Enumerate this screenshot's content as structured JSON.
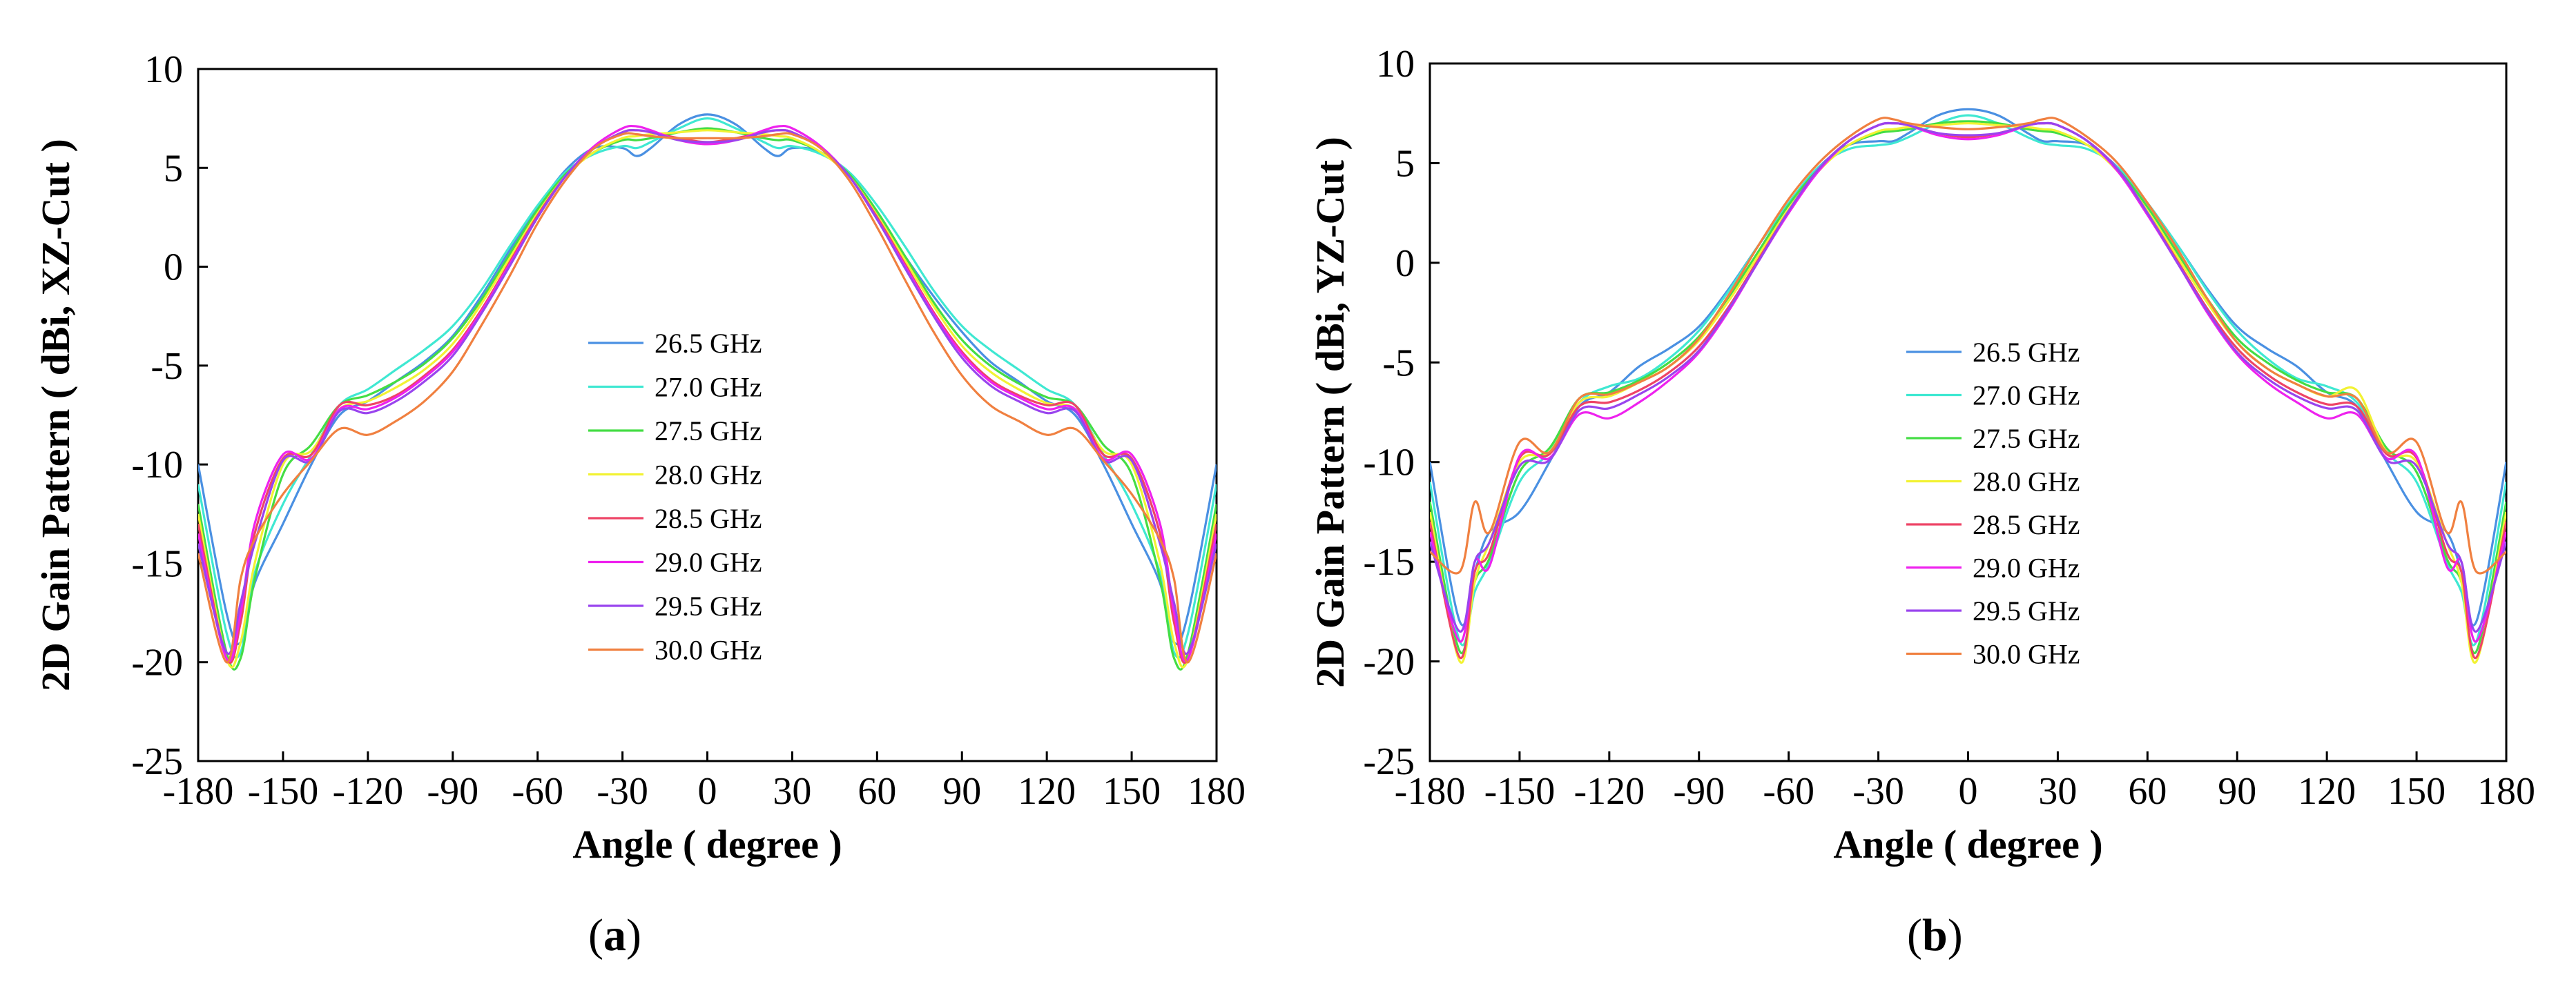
{
  "chart_data": [
    {
      "type": "line",
      "panel": "a",
      "caption": "a",
      "title": "",
      "xlabel": "Angle ( degree )",
      "ylabel": "2D Gain Pattern ( dBi, XZ-Cut )",
      "xlim": [
        -180,
        180
      ],
      "ylim": [
        -25,
        10
      ],
      "xticks": [
        "-180",
        "-150",
        "-120",
        "-90",
        "-60",
        "-30",
        "0",
        "30",
        "60",
        "90",
        "120",
        "150",
        "180"
      ],
      "yticks": [
        "10",
        "5",
        "0",
        "-5",
        "-10",
        "-15",
        "-20",
        "-25"
      ],
      "grid": false,
      "legend_position": "center",
      "x": [
        -180,
        -170,
        -165,
        -160,
        -150,
        -140,
        -130,
        -120,
        -110,
        -100,
        -90,
        -80,
        -70,
        -60,
        -50,
        -40,
        -30,
        -25,
        -20,
        -10,
        0,
        10,
        20,
        25,
        30,
        40,
        50,
        60,
        70,
        80,
        90,
        100,
        110,
        120,
        130,
        140,
        150,
        160,
        165,
        170,
        180
      ],
      "series": [
        {
          "name": "26.5 GHz",
          "color": "#4a90e2",
          "values": [
            -10.0,
            -17.5,
            -19.0,
            -16.0,
            -13.0,
            -10.0,
            -7.5,
            -6.8,
            -5.8,
            -4.8,
            -3.5,
            -1.5,
            0.8,
            3.0,
            4.9,
            6.0,
            6.0,
            5.6,
            6.0,
            7.2,
            7.7,
            7.2,
            6.0,
            5.6,
            6.0,
            5.8,
            4.6,
            2.7,
            0.5,
            -1.5,
            -3.3,
            -4.8,
            -5.8,
            -6.8,
            -7.5,
            -10.0,
            -13.0,
            -16.0,
            -19.0,
            -17.5,
            -10.0
          ]
        },
        {
          "name": "27.0 GHz",
          "color": "#3fe8d2",
          "values": [
            -11.0,
            -18.5,
            -19.5,
            -15.5,
            -12.0,
            -9.5,
            -7.0,
            -6.2,
            -5.2,
            -4.2,
            -3.0,
            -1.2,
            1.0,
            3.1,
            4.8,
            5.7,
            6.1,
            6.0,
            6.3,
            7.0,
            7.5,
            7.0,
            6.3,
            6.0,
            6.1,
            5.7,
            4.8,
            3.1,
            1.0,
            -1.2,
            -3.0,
            -4.2,
            -5.2,
            -6.2,
            -7.0,
            -9.5,
            -12.0,
            -15.5,
            -19.5,
            -18.5,
            -11.0
          ]
        },
        {
          "name": "27.5 GHz",
          "color": "#44dd44",
          "values": [
            -12.0,
            -19.5,
            -19.8,
            -15.8,
            -10.5,
            -9.0,
            -7.0,
            -6.5,
            -5.8,
            -4.9,
            -3.6,
            -1.7,
            0.6,
            2.9,
            4.7,
            5.8,
            6.4,
            6.4,
            6.5,
            6.8,
            7.0,
            6.8,
            6.5,
            6.4,
            6.4,
            5.8,
            4.7,
            2.8,
            0.5,
            -1.8,
            -3.7,
            -5.0,
            -5.9,
            -6.6,
            -7.0,
            -9.0,
            -10.5,
            -15.8,
            -19.8,
            -19.5,
            -12.0
          ]
        },
        {
          "name": "28.0 GHz",
          "color": "#f2f233",
          "values": [
            -12.5,
            -19.8,
            -19.0,
            -15.0,
            -10.0,
            -9.3,
            -7.2,
            -6.8,
            -6.1,
            -5.2,
            -3.9,
            -1.9,
            0.4,
            2.7,
            4.6,
            5.8,
            6.5,
            6.6,
            6.7,
            6.8,
            6.9,
            6.8,
            6.7,
            6.6,
            6.5,
            5.8,
            4.6,
            2.6,
            0.3,
            -2.0,
            -4.0,
            -5.3,
            -6.2,
            -6.9,
            -7.2,
            -9.3,
            -10.0,
            -15.0,
            -19.0,
            -19.8,
            -12.5
          ]
        },
        {
          "name": "28.5 GHz",
          "color": "#ee4466",
          "values": [
            -13.0,
            -19.8,
            -18.0,
            -13.5,
            -9.7,
            -9.5,
            -7.0,
            -7.0,
            -6.5,
            -5.5,
            -4.2,
            -2.2,
            0.2,
            2.6,
            4.6,
            6.0,
            6.8,
            6.9,
            6.8,
            6.5,
            6.3,
            6.5,
            6.8,
            6.9,
            6.8,
            6.0,
            4.6,
            2.5,
            0.1,
            -2.3,
            -4.3,
            -5.7,
            -6.5,
            -7.0,
            -7.0,
            -9.5,
            -9.7,
            -13.5,
            -18.0,
            -19.8,
            -13.0
          ]
        },
        {
          "name": "29.0 GHz",
          "color": "#ee22ee",
          "values": [
            -13.5,
            -19.8,
            -17.5,
            -13.0,
            -9.5,
            -9.7,
            -7.2,
            -7.2,
            -6.6,
            -5.6,
            -4.3,
            -2.3,
            0.1,
            2.5,
            4.6,
            6.1,
            7.0,
            7.1,
            6.9,
            6.4,
            6.2,
            6.4,
            6.9,
            7.1,
            7.0,
            6.1,
            4.6,
            2.4,
            0.0,
            -2.4,
            -4.4,
            -5.8,
            -6.6,
            -7.2,
            -7.2,
            -9.7,
            -9.5,
            -13.0,
            -17.5,
            -19.8,
            -13.5
          ]
        },
        {
          "name": "29.5 GHz",
          "color": "#9944ee",
          "values": [
            -14.0,
            -19.5,
            -17.0,
            -14.0,
            -9.8,
            -9.8,
            -7.3,
            -7.4,
            -6.8,
            -5.8,
            -4.5,
            -2.4,
            0.0,
            2.5,
            4.6,
            6.0,
            6.8,
            6.9,
            6.8,
            6.4,
            6.3,
            6.4,
            6.8,
            6.9,
            6.8,
            6.0,
            4.6,
            2.4,
            -0.1,
            -2.5,
            -4.6,
            -6.0,
            -6.8,
            -7.4,
            -7.3,
            -9.8,
            -9.8,
            -14.0,
            -17.0,
            -19.5,
            -14.0
          ]
        },
        {
          "name": "30.0 GHz",
          "color": "#f08040",
          "values": [
            -14.5,
            -20.0,
            -15.8,
            -13.8,
            -11.5,
            -9.8,
            -8.2,
            -8.5,
            -7.8,
            -6.8,
            -5.3,
            -3.0,
            -0.5,
            2.2,
            4.4,
            6.0,
            6.7,
            6.7,
            6.6,
            6.5,
            6.5,
            6.5,
            6.6,
            6.7,
            6.7,
            6.0,
            4.4,
            2.0,
            -0.7,
            -3.3,
            -5.5,
            -7.0,
            -7.8,
            -8.5,
            -8.2,
            -9.8,
            -11.5,
            -13.8,
            -15.8,
            -20.0,
            -14.5
          ]
        }
      ]
    },
    {
      "type": "line",
      "panel": "b",
      "caption": "b",
      "title": "",
      "xlabel": "Angle ( degree )",
      "ylabel": "2D Gain Pattern ( dBi, YZ-Cut )",
      "xlim": [
        -180,
        180
      ],
      "ylim": [
        -25,
        10
      ],
      "xticks": [
        "-180",
        "-150",
        "-120",
        "-90",
        "-60",
        "-30",
        "0",
        "30",
        "60",
        "90",
        "120",
        "150",
        "180"
      ],
      "yticks": [
        "10",
        "5",
        "0",
        "-5",
        "-10",
        "-15",
        "-20",
        "-25"
      ],
      "grid": false,
      "legend_position": "center",
      "x": [
        -180,
        -170,
        -165,
        -160,
        -150,
        -140,
        -130,
        -120,
        -110,
        -100,
        -90,
        -80,
        -70,
        -60,
        -50,
        -40,
        -30,
        -25,
        -20,
        -10,
        0,
        10,
        20,
        25,
        30,
        40,
        50,
        60,
        70,
        80,
        90,
        100,
        110,
        120,
        130,
        140,
        150,
        160,
        165,
        170,
        180
      ],
      "series": [
        {
          "name": "26.5 GHz",
          "color": "#4a90e2",
          "values": [
            -10.0,
            -18.0,
            -15.5,
            -13.5,
            -12.5,
            -10.0,
            -7.2,
            -6.5,
            -5.2,
            -4.3,
            -3.2,
            -1.3,
            0.9,
            3.0,
            4.8,
            5.9,
            6.1,
            6.1,
            6.5,
            7.4,
            7.7,
            7.4,
            6.5,
            6.1,
            6.1,
            5.9,
            4.8,
            3.0,
            0.9,
            -1.3,
            -3.2,
            -4.3,
            -5.2,
            -6.5,
            -7.2,
            -10.0,
            -12.5,
            -13.5,
            -15.5,
            -18.0,
            -10.0
          ]
        },
        {
          "name": "27.0 GHz",
          "color": "#3fe8d2",
          "values": [
            -11.0,
            -19.0,
            -16.5,
            -15.0,
            -11.0,
            -9.5,
            -7.0,
            -6.2,
            -5.8,
            -4.8,
            -3.4,
            -1.4,
            0.9,
            3.0,
            4.8,
            5.7,
            5.9,
            6.0,
            6.3,
            7.0,
            7.4,
            7.0,
            6.3,
            6.0,
            5.9,
            5.7,
            4.8,
            3.0,
            0.9,
            -1.4,
            -3.4,
            -4.8,
            -5.8,
            -6.2,
            -7.0,
            -9.5,
            -11.0,
            -15.0,
            -16.5,
            -19.0,
            -11.0
          ]
        },
        {
          "name": "27.5 GHz",
          "color": "#44dd44",
          "values": [
            -12.0,
            -19.5,
            -16.0,
            -14.8,
            -10.5,
            -9.3,
            -6.8,
            -6.5,
            -5.9,
            -5.0,
            -3.7,
            -1.7,
            0.6,
            2.9,
            4.7,
            5.9,
            6.5,
            6.6,
            6.7,
            7.0,
            7.1,
            7.0,
            6.7,
            6.6,
            6.5,
            5.9,
            4.7,
            2.8,
            0.5,
            -1.8,
            -3.8,
            -5.0,
            -5.9,
            -6.5,
            -6.8,
            -9.3,
            -10.5,
            -14.8,
            -16.0,
            -19.5,
            -12.0
          ]
        },
        {
          "name": "28.0 GHz",
          "color": "#f2f233",
          "values": [
            -12.5,
            -20.0,
            -16.0,
            -14.0,
            -10.0,
            -9.5,
            -7.0,
            -6.7,
            -6.0,
            -5.2,
            -3.9,
            -1.9,
            0.4,
            2.7,
            4.6,
            5.9,
            6.6,
            6.7,
            6.8,
            6.9,
            7.0,
            6.9,
            6.8,
            6.7,
            6.6,
            5.9,
            4.6,
            2.6,
            0.3,
            -2.0,
            -4.0,
            -5.3,
            -6.1,
            -6.7,
            -6.4,
            -9.5,
            -10.0,
            -14.0,
            -16.0,
            -20.0,
            -12.5
          ]
        },
        {
          "name": "28.5 GHz",
          "color": "#ee4466",
          "values": [
            -13.0,
            -19.8,
            -15.5,
            -14.5,
            -9.8,
            -9.6,
            -7.2,
            -7.0,
            -6.4,
            -5.5,
            -4.2,
            -2.2,
            0.2,
            2.6,
            4.7,
            6.1,
            6.9,
            7.0,
            6.9,
            6.5,
            6.3,
            6.5,
            6.9,
            7.0,
            6.9,
            6.1,
            4.7,
            2.5,
            0.1,
            -2.3,
            -4.3,
            -5.6,
            -6.5,
            -7.1,
            -7.2,
            -9.6,
            -9.8,
            -14.5,
            -15.5,
            -19.8,
            -13.0
          ]
        },
        {
          "name": "29.0 GHz",
          "color": "#ee22ee",
          "values": [
            -13.5,
            -19.0,
            -15.0,
            -15.2,
            -9.7,
            -9.8,
            -7.6,
            -7.8,
            -7.0,
            -5.9,
            -4.5,
            -2.4,
            0.1,
            2.5,
            4.6,
            6.1,
            6.9,
            7.0,
            6.9,
            6.4,
            6.2,
            6.4,
            6.9,
            7.0,
            6.9,
            6.1,
            4.6,
            2.4,
            0.0,
            -2.5,
            -4.6,
            -6.0,
            -7.0,
            -7.8,
            -7.6,
            -9.8,
            -9.7,
            -15.2,
            -15.0,
            -19.0,
            -13.5
          ]
        },
        {
          "name": "29.5 GHz",
          "color": "#9944ee",
          "values": [
            -14.0,
            -18.5,
            -15.0,
            -14.0,
            -10.2,
            -9.9,
            -7.4,
            -7.3,
            -6.6,
            -5.7,
            -4.4,
            -2.3,
            0.1,
            2.6,
            4.7,
            6.1,
            6.9,
            7.0,
            6.9,
            6.5,
            6.4,
            6.5,
            6.9,
            7.0,
            6.9,
            6.1,
            4.7,
            2.5,
            0.0,
            -2.4,
            -4.5,
            -5.8,
            -6.7,
            -7.3,
            -7.4,
            -9.9,
            -10.2,
            -14.0,
            -15.0,
            -18.5,
            -14.0
          ]
        },
        {
          "name": "30.0 GHz",
          "color": "#f08040",
          "values": [
            -14.5,
            -15.5,
            -12.0,
            -13.5,
            -9.0,
            -9.5,
            -6.8,
            -6.6,
            -6.0,
            -5.2,
            -3.8,
            -1.6,
            0.9,
            3.2,
            5.0,
            6.3,
            7.2,
            7.2,
            7.0,
            6.8,
            6.7,
            6.8,
            7.0,
            7.2,
            7.2,
            6.3,
            5.0,
            3.0,
            0.7,
            -1.8,
            -4.0,
            -5.3,
            -6.1,
            -6.7,
            -6.8,
            -9.5,
            -9.0,
            -13.5,
            -12.0,
            -15.5,
            -14.5
          ]
        }
      ]
    }
  ]
}
